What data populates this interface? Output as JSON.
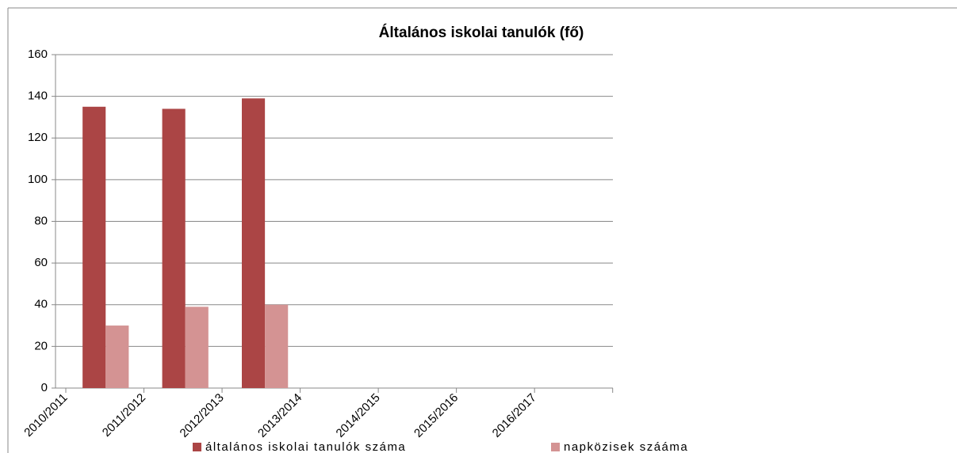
{
  "chart_data": {
    "type": "bar",
    "title": "Általános iskolai tanulók (fő)",
    "categories": [
      "2010/2011",
      "2011/2012",
      "2012/2013",
      "2013/2014",
      "2014/2015",
      "2015/2016",
      "2016/2017"
    ],
    "series": [
      {
        "name": "általános iskolai tanulók száma",
        "color": "#ab4545",
        "values": [
          135,
          134,
          139,
          null,
          null,
          null,
          null
        ]
      },
      {
        "name": "napközisek szááma",
        "color": "#d49393",
        "values": [
          30,
          39,
          40,
          null,
          null,
          null,
          null
        ]
      }
    ],
    "ylim": [
      0,
      160
    ],
    "yticks": [
      0,
      20,
      40,
      60,
      80,
      100,
      120,
      140,
      160
    ],
    "grid": true,
    "legend": "bottom"
  }
}
